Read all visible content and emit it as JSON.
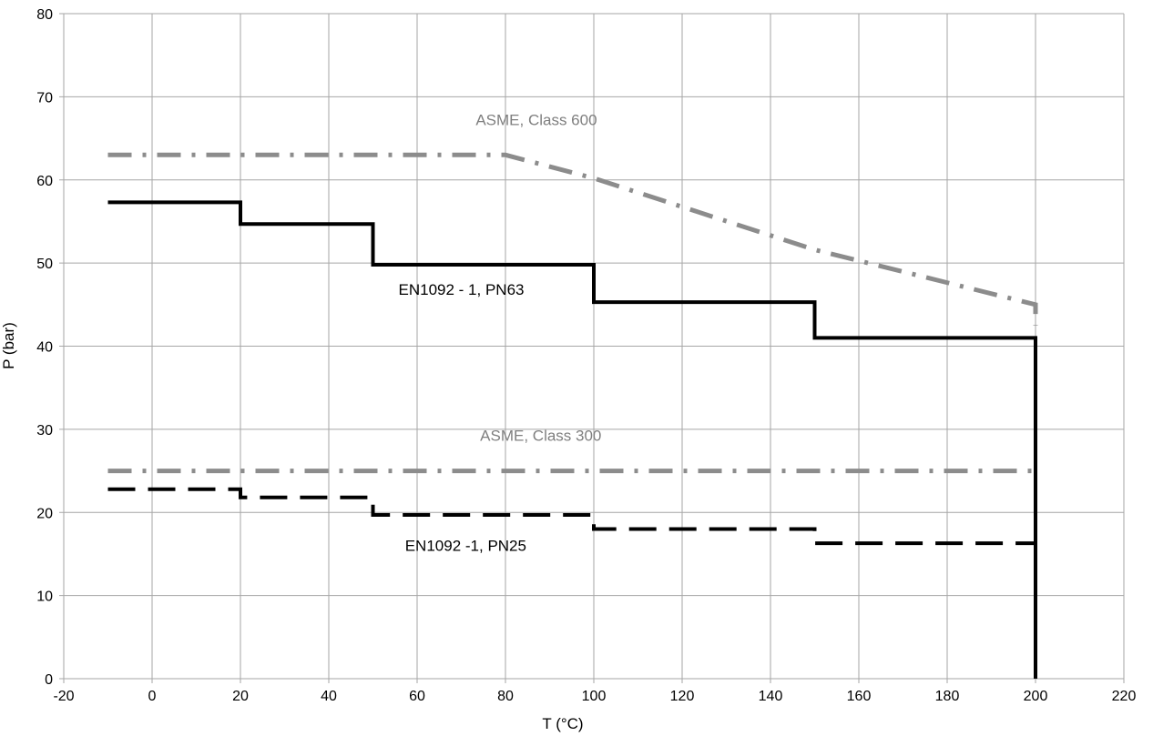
{
  "chart_data": {
    "type": "line",
    "title": "",
    "xlabel": "T (°C)",
    "ylabel": "P (bar)",
    "xlim": [
      -20,
      220
    ],
    "ylim": [
      0,
      80
    ],
    "x_ticks": [
      "-20",
      "0",
      "20",
      "40",
      "60",
      "80",
      "100",
      "120",
      "140",
      "160",
      "180",
      "200",
      "220"
    ],
    "y_ticks": [
      "0",
      "10",
      "20",
      "30",
      "40",
      "50",
      "60",
      "70",
      "80"
    ],
    "grid": true,
    "legend": "none",
    "series": [
      {
        "name": "ASME, Class 600",
        "style": "dash-dot",
        "color": "#8c8c8c",
        "points": [
          [
            -10,
            63
          ],
          [
            80,
            63
          ],
          [
            100,
            60.2
          ],
          [
            150,
            51.6
          ],
          [
            200,
            45
          ],
          [
            200,
            42.5
          ]
        ]
      },
      {
        "name": "EN1092 - 1, PN63",
        "style": "solid",
        "color": "#000000",
        "points": [
          [
            -10,
            57.3
          ],
          [
            20,
            57.3
          ],
          [
            20,
            54.7
          ],
          [
            50,
            54.7
          ],
          [
            50,
            49.8
          ],
          [
            100,
            49.8
          ],
          [
            100,
            45.3
          ],
          [
            150,
            45.3
          ],
          [
            150,
            41
          ],
          [
            200,
            41
          ],
          [
            200,
            0
          ]
        ]
      },
      {
        "name": "ASME, Class 300",
        "style": "dash-dot",
        "color": "#8c8c8c",
        "points": [
          [
            -10,
            25
          ],
          [
            200,
            25
          ]
        ]
      },
      {
        "name": "EN1092 -1, PN25",
        "style": "dashed",
        "color": "#000000",
        "points": [
          [
            -10,
            22.8
          ],
          [
            20,
            22.8
          ],
          [
            20,
            21.8
          ],
          [
            50,
            21.8
          ],
          [
            50,
            19.7
          ],
          [
            100,
            19.7
          ],
          [
            100,
            18
          ],
          [
            150,
            18
          ],
          [
            150,
            16.3
          ],
          [
            200,
            16.3
          ]
        ]
      }
    ],
    "annotations": [
      {
        "text": "ASME, Class 600",
        "x": 87,
        "y": 66.6,
        "color": "#7f7f7f"
      },
      {
        "text": "EN1092 - 1, PN63",
        "x": 70,
        "y": 46.2,
        "color": "#000000"
      },
      {
        "text": "ASME, Class 300",
        "x": 88,
        "y": 28.6,
        "color": "#7f7f7f"
      },
      {
        "text": "EN1092 -1, PN25",
        "x": 71,
        "y": 15.4,
        "color": "#000000"
      }
    ]
  }
}
